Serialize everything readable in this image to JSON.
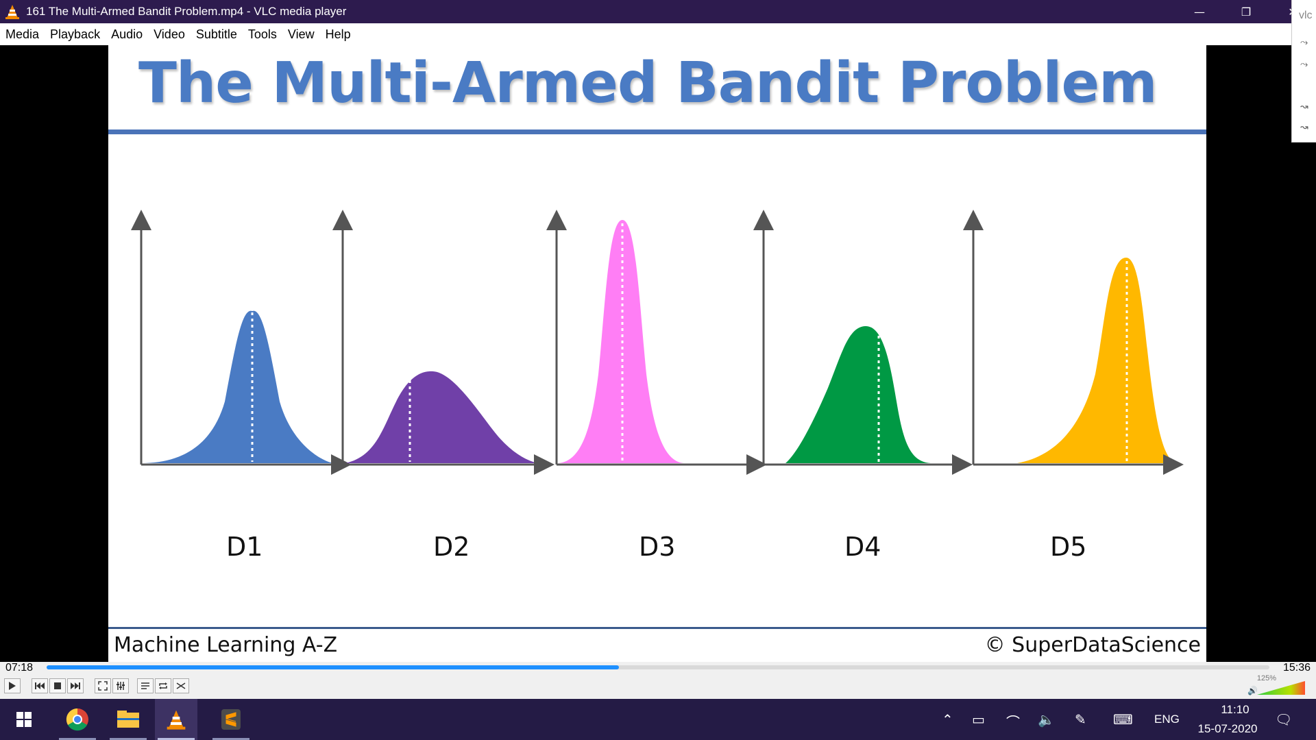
{
  "window": {
    "title": "161 The Multi-Armed Bandit Problem.mp4 - VLC media player",
    "minimize": "—",
    "restore": "❐",
    "close": "✕"
  },
  "menu": {
    "items": [
      "Media",
      "Playback",
      "Audio",
      "Video",
      "Subtitle",
      "Tools",
      "View",
      "Help"
    ]
  },
  "slide": {
    "title": "The Multi-Armed Bandit Problem",
    "footer_left": "Machine Learning A-Z",
    "footer_right": "© SuperDataScience",
    "distributions": [
      {
        "label": "D1",
        "color": "#4a7bc4"
      },
      {
        "label": "D2",
        "color": "#7040a8"
      },
      {
        "label": "D3",
        "color": "#ff7ef5"
      },
      {
        "label": "D4",
        "color": "#009944"
      },
      {
        "label": "D5",
        "color": "#ffb800"
      }
    ],
    "title_color": "#4a7bc4"
  },
  "vlc_extension": {
    "tag": "vlc"
  },
  "playback": {
    "elapsed": "07:18",
    "total": "15:36",
    "progress": 0.468,
    "volume_label": "125%"
  },
  "taskbar": {
    "lang": "ENG",
    "time": "11:10",
    "date": "15-07-2020"
  }
}
